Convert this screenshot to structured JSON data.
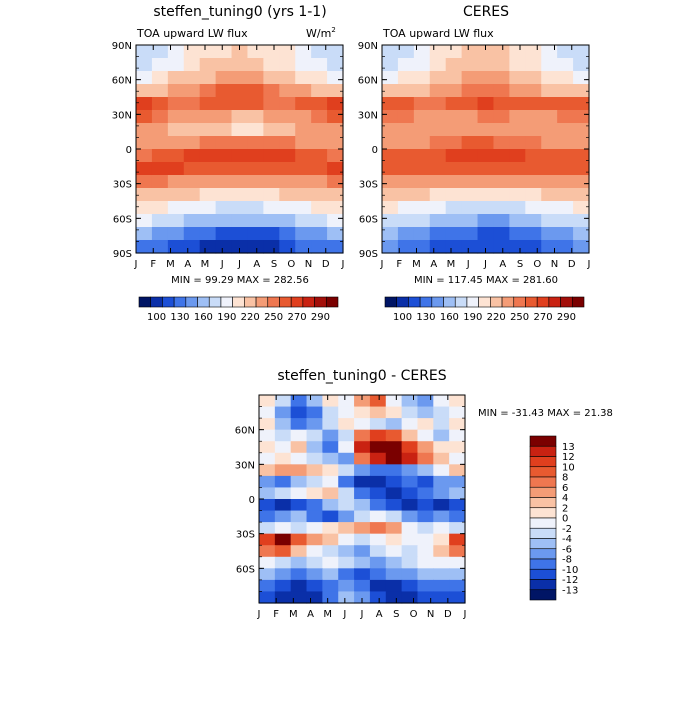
{
  "panels": [
    {
      "id": "model",
      "title": "steffen_tuning0 (yrs 1-1)",
      "left_label": "TOA upward LW flux",
      "units": "W/m",
      "units_sup": "2",
      "minmax": "MIN =  99.29 MAX = 282.56"
    },
    {
      "id": "obs",
      "title": "CERES",
      "left_label": "TOA upward LW flux",
      "units": "",
      "units_sup": "",
      "minmax": "MIN = 117.45 MAX = 281.60"
    },
    {
      "id": "diff",
      "title": "steffen_tuning0 - CERES",
      "left_label": "",
      "units": "",
      "units_sup": "",
      "minmax": "MIN = -31.43 MAX =  21.38"
    }
  ],
  "chart_data": [
    {
      "type": "heatmap",
      "title": "steffen_tuning0 (yrs 1-1)",
      "subtitle": "TOA upward LW flux",
      "units": "W/m2",
      "x_tick_labels": [
        "J",
        "F",
        "M",
        "A",
        "M",
        "J",
        "J",
        "A",
        "S",
        "O",
        "N",
        "D",
        "J"
      ],
      "y_tick_labels": [
        "90N",
        "60N",
        "30N",
        "0",
        "30S",
        "60S",
        "90S"
      ],
      "x_range": [
        "Jan",
        "Jan"
      ],
      "y_range": [
        90,
        -90
      ],
      "min": 99.29,
      "max": 282.56,
      "colorbar_labels": [
        "100",
        "130",
        "160",
        "190",
        "220",
        "250",
        "270",
        "290"
      ],
      "rows_lat": [
        85,
        70,
        55,
        40,
        25,
        15,
        5,
        -5,
        -15,
        -25,
        -35,
        -45,
        -55,
        -65,
        -75,
        -85
      ],
      "values": [
        [
          175,
          185,
          195,
          205,
          215,
          218,
          220,
          218,
          212,
          205,
          195,
          185,
          178
        ],
        [
          182,
          192,
          200,
          210,
          220,
          224,
          225,
          223,
          215,
          208,
          200,
          190,
          183
        ],
        [
          200,
          210,
          220,
          225,
          230,
          235,
          238,
          236,
          228,
          220,
          212,
          205,
          200
        ],
        [
          230,
          232,
          236,
          240,
          250,
          262,
          268,
          266,
          255,
          243,
          236,
          232,
          230
        ],
        [
          272,
          268,
          258,
          255,
          262,
          266,
          268,
          266,
          258,
          258,
          262,
          268,
          272
        ],
        [
          262,
          255,
          245,
          240,
          238,
          235,
          233,
          232,
          235,
          240,
          246,
          252,
          260
        ],
        [
          238,
          235,
          230,
          228,
          225,
          220,
          215,
          218,
          225,
          230,
          235,
          238,
          238
        ],
        [
          240,
          240,
          238,
          245,
          255,
          258,
          255,
          255,
          256,
          250,
          242,
          240,
          240
        ],
        [
          258,
          262,
          268,
          270,
          275,
          277,
          278,
          278,
          275,
          270,
          265,
          260,
          258
        ],
        [
          270,
          275,
          272,
          268,
          265,
          262,
          262,
          262,
          265,
          262,
          260,
          262,
          270
        ],
        [
          250,
          252,
          248,
          246,
          243,
          240,
          238,
          238,
          240,
          242,
          244,
          248,
          250
        ],
        [
          232,
          230,
          226,
          222,
          218,
          214,
          212,
          212,
          215,
          220,
          226,
          230,
          232
        ],
        [
          212,
          208,
          202,
          196,
          192,
          188,
          186,
          186,
          190,
          196,
          204,
          210,
          212
        ],
        [
          190,
          186,
          180,
          174,
          168,
          162,
          160,
          160,
          165,
          174,
          184,
          188,
          190
        ],
        [
          160,
          156,
          150,
          142,
          135,
          126,
          120,
          120,
          128,
          138,
          150,
          156,
          160
        ],
        [
          140,
          134,
          126,
          118,
          110,
          104,
          100,
          100,
          106,
          118,
          130,
          136,
          140
        ]
      ]
    },
    {
      "type": "heatmap",
      "title": "CERES",
      "subtitle": "TOA upward LW flux",
      "x_tick_labels": [
        "J",
        "F",
        "M",
        "A",
        "M",
        "J",
        "J",
        "A",
        "S",
        "O",
        "N",
        "D",
        "J"
      ],
      "y_tick_labels": [
        "90N",
        "60N",
        "30N",
        "0",
        "30S",
        "60S",
        "90S"
      ],
      "x_range": [
        "Jan",
        "Jan"
      ],
      "y_range": [
        90,
        -90
      ],
      "min": 117.45,
      "max": 281.6,
      "colorbar_labels": [
        "100",
        "130",
        "160",
        "190",
        "220",
        "250",
        "270",
        "290"
      ],
      "rows_lat": [
        85,
        70,
        55,
        40,
        25,
        15,
        5,
        -5,
        -15,
        -25,
        -35,
        -45,
        -55,
        -65,
        -75,
        -85
      ],
      "values": [
        [
          178,
          185,
          195,
          205,
          215,
          220,
          222,
          220,
          212,
          205,
          195,
          186,
          178
        ],
        [
          185,
          192,
          200,
          210,
          220,
          225,
          228,
          226,
          218,
          210,
          200,
          192,
          185
        ],
        [
          200,
          208,
          215,
          222,
          230,
          235,
          238,
          236,
          228,
          220,
          212,
          205,
          200
        ],
        [
          228,
          230,
          234,
          238,
          245,
          252,
          256,
          254,
          248,
          240,
          234,
          230,
          228
        ],
        [
          265,
          262,
          258,
          256,
          262,
          268,
          270,
          268,
          262,
          260,
          262,
          265,
          265
        ],
        [
          255,
          250,
          244,
          242,
          244,
          248,
          250,
          250,
          246,
          242,
          246,
          250,
          255
        ],
        [
          240,
          238,
          236,
          235,
          238,
          240,
          242,
          242,
          240,
          238,
          238,
          240,
          240
        ],
        [
          245,
          245,
          246,
          250,
          255,
          260,
          260,
          258,
          255,
          250,
          246,
          245,
          245
        ],
        [
          260,
          262,
          265,
          268,
          272,
          276,
          278,
          278,
          274,
          268,
          264,
          262,
          260
        ],
        [
          265,
          268,
          266,
          264,
          262,
          262,
          264,
          264,
          264,
          262,
          262,
          264,
          265
        ],
        [
          248,
          248,
          246,
          244,
          242,
          240,
          240,
          240,
          242,
          242,
          244,
          246,
          248
        ],
        [
          228,
          226,
          222,
          218,
          215,
          212,
          210,
          210,
          214,
          218,
          222,
          226,
          228
        ],
        [
          205,
          202,
          198,
          192,
          188,
          184,
          182,
          182,
          186,
          192,
          198,
          202,
          205
        ],
        [
          185,
          182,
          178,
          172,
          166,
          160,
          158,
          158,
          162,
          170,
          178,
          182,
          185
        ],
        [
          160,
          156,
          150,
          144,
          138,
          130,
          126,
          126,
          132,
          140,
          150,
          156,
          160
        ],
        [
          145,
          140,
          134,
          128,
          122,
          118,
          118,
          118,
          122,
          128,
          136,
          140,
          145
        ]
      ]
    },
    {
      "type": "heatmap",
      "title": "steffen_tuning0 - CERES",
      "x_tick_labels": [
        "J",
        "F",
        "M",
        "A",
        "M",
        "J",
        "J",
        "A",
        "S",
        "O",
        "N",
        "D",
        "J"
      ],
      "y_tick_labels": [
        "60N",
        "30N",
        "0",
        "30S",
        "60S"
      ],
      "x_range": [
        "Jan",
        "Jan"
      ],
      "y_range": [
        90,
        -90
      ],
      "min": -31.43,
      "max": 21.38,
      "colorbar_labels": [
        "13",
        "12",
        "10",
        "8",
        "6",
        "4",
        "2",
        "0",
        "-2",
        "-4",
        "-6",
        "-8",
        "-10",
        "-12",
        "-13"
      ],
      "rows_lat": [
        85,
        75,
        65,
        55,
        45,
        35,
        25,
        15,
        5,
        -5,
        -15,
        -25,
        -35,
        -45,
        -55,
        -65,
        -75,
        -85
      ],
      "values": [
        [
          0,
          -4,
          -10,
          -6,
          0,
          -2,
          4,
          8,
          -2,
          -6,
          -8,
          -2,
          0
        ],
        [
          -2,
          -8,
          -12,
          -10,
          -4,
          -2,
          0,
          2,
          0,
          -4,
          -6,
          -4,
          -2
        ],
        [
          0,
          -6,
          -10,
          -8,
          -4,
          0,
          -2,
          -4,
          -6,
          -2,
          0,
          -4,
          0
        ],
        [
          -2,
          -4,
          -2,
          -4,
          -8,
          -4,
          6,
          10,
          8,
          2,
          -2,
          -6,
          -2
        ],
        [
          0,
          -2,
          2,
          -6,
          -10,
          -2,
          12,
          13,
          13,
          10,
          4,
          0,
          0
        ],
        [
          -2,
          0,
          -2,
          -4,
          -6,
          -8,
          6,
          12,
          13,
          12,
          6,
          2,
          -2
        ],
        [
          2,
          4,
          4,
          2,
          0,
          -4,
          -8,
          -10,
          -10,
          -8,
          -6,
          -2,
          2
        ],
        [
          -8,
          -10,
          -6,
          -4,
          -2,
          -10,
          -13,
          -13,
          -12,
          -10,
          -12,
          -8,
          -8
        ],
        [
          -6,
          -4,
          -2,
          0,
          2,
          -4,
          -10,
          -12,
          -13,
          -12,
          -10,
          -8,
          -6
        ],
        [
          -12,
          -13,
          -12,
          -10,
          -6,
          -4,
          -6,
          -10,
          -12,
          -13,
          -12,
          -13,
          -12
        ],
        [
          -10,
          -8,
          -6,
          -10,
          -12,
          -8,
          -4,
          -2,
          -4,
          -8,
          -10,
          -8,
          -10
        ],
        [
          -4,
          -2,
          -4,
          -2,
          0,
          2,
          4,
          6,
          4,
          -2,
          -4,
          -2,
          -4
        ],
        [
          10,
          13,
          8,
          4,
          2,
          -2,
          -4,
          -2,
          0,
          -2,
          -2,
          0,
          10
        ],
        [
          6,
          8,
          2,
          -2,
          -4,
          -6,
          -8,
          -4,
          -2,
          -4,
          -2,
          2,
          6
        ],
        [
          -2,
          -4,
          -6,
          -4,
          -2,
          -4,
          -6,
          -8,
          -6,
          -4,
          -2,
          -2,
          -2
        ],
        [
          -6,
          -8,
          -10,
          -8,
          -6,
          -10,
          -12,
          -10,
          -8,
          -8,
          -6,
          -6,
          -6
        ],
        [
          -10,
          -12,
          -13,
          -12,
          -10,
          -8,
          -10,
          -13,
          -13,
          -12,
          -10,
          -10,
          -10
        ],
        [
          -12,
          -13,
          -13,
          -13,
          -10,
          -6,
          -8,
          -12,
          -13,
          -13,
          -12,
          -12,
          -12
        ]
      ]
    }
  ],
  "colorbars": {
    "abs": {
      "labels": [
        "100",
        "130",
        "160",
        "190",
        "220",
        "250",
        "270",
        "290"
      ],
      "colors": [
        "#001565",
        "#0a2fa8",
        "#1c4fd6",
        "#3f74e8",
        "#6b99ef",
        "#9ebff5",
        "#c9dcf8",
        "#eff2fb",
        "#fde3d3",
        "#f9c2a4",
        "#f49c76",
        "#ef7750",
        "#e85a30",
        "#e03f1e",
        "#c92212",
        "#a30f0a",
        "#7a0000"
      ],
      "thresholds": [
        100,
        115,
        130,
        145,
        160,
        175,
        190,
        205,
        220,
        235,
        250,
        260,
        270,
        280,
        290,
        300
      ]
    },
    "diff": {
      "labels": [
        "13",
        "12",
        "10",
        "8",
        "6",
        "4",
        "2",
        "0",
        "-2",
        "-4",
        "-6",
        "-8",
        "-10",
        "-12",
        "-13"
      ],
      "colors": [
        "#001565",
        "#0a2fa8",
        "#1c4fd6",
        "#3f74e8",
        "#6b99ef",
        "#9ebff5",
        "#c9dcf8",
        "#eff2fb",
        "#fde3d3",
        "#f9c2a4",
        "#f49c76",
        "#ef7750",
        "#e85a30",
        "#e03f1e",
        "#c92212",
        "#7a0000"
      ],
      "thresholds": [
        -13,
        -12,
        -10,
        -8,
        -6,
        -4,
        -2,
        0,
        2,
        4,
        6,
        8,
        10,
        12,
        13
      ]
    }
  }
}
